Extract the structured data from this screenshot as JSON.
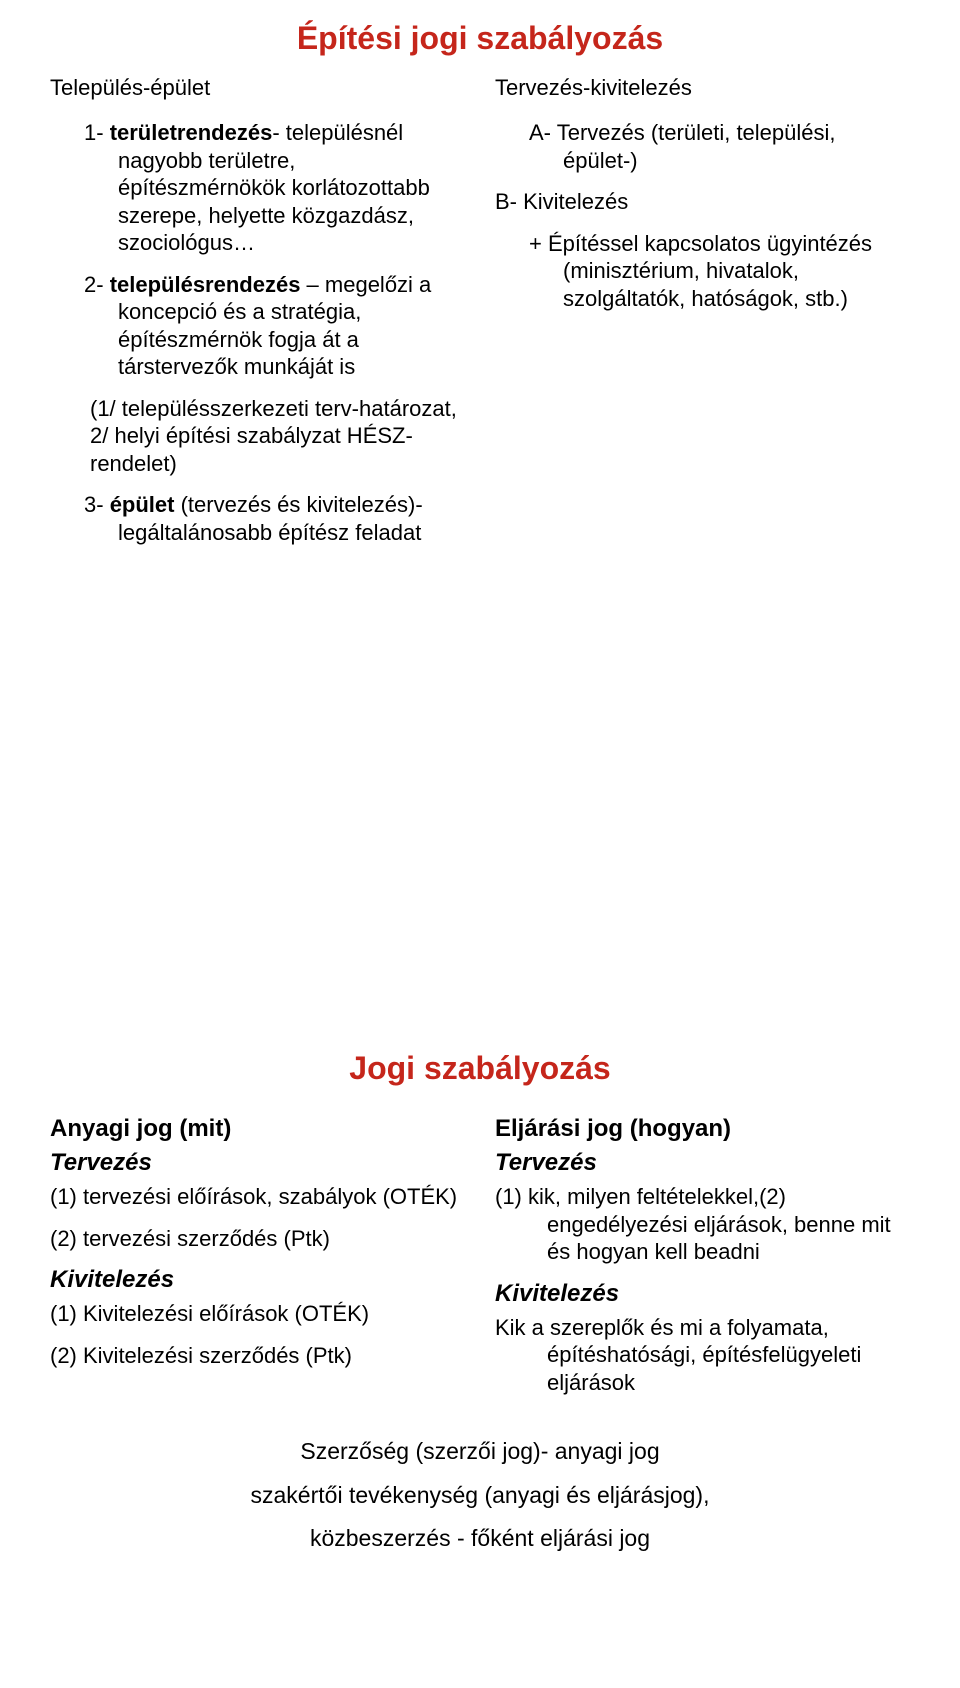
{
  "colors": {
    "heading": "#c5261b",
    "text": "#000000",
    "background": "#ffffff"
  },
  "fonts": {
    "title_size": 32,
    "body_size": 22,
    "subhead_size": 24
  },
  "section1": {
    "title": "Építési jogi szabályozás",
    "left_header": "Település-épület",
    "right_header": "Tervezés-kivitelezés",
    "left": {
      "p1a": "1- ",
      "p1b": "területrendezés",
      "p1c": "- településnél nagyobb területre, építészmérnökök korlátozottabb szerepe, helyette közgazdász, szociológus…",
      "p2a": "2- ",
      "p2b": "településrendezés",
      "p2c": " – megelőzi a koncepció és a stratégia, építészmérnök fogja át a társtervezők munkáját is",
      "p2d": "(1/ településszerkezeti terv-határozat, 2/ helyi építési szabályzat HÉSZ-rendelet)",
      "p3a": "3- ",
      "p3b": "épület",
      "p3c": " (tervezés és kivitelezés)- legáltalánosabb építész feladat"
    },
    "right": {
      "r1": "A- Tervezés (területi,       települési, épület-)",
      "r2": "B- Kivitelezés",
      "r3": "+ Építéssel kapcsolatos      ügyintézés (minisztérium, hivatalok, szolgáltatók, hatóságok, stb.)"
    }
  },
  "section2": {
    "title": "Jogi szabályozás",
    "left": {
      "h1": "Anyagi jog (mit)",
      "h2": "Tervezés",
      "p1": "(1) tervezési előírások, szabályok (OTÉK)",
      "p2": "(2) tervezési szerződés (Ptk)",
      "h3": "Kivitelezés",
      "p3": "(1) Kivitelezési előírások (OTÉK)",
      "p4": "(2) Kivitelezési szerződés (Ptk)"
    },
    "right": {
      "h1": "Eljárási jog (hogyan)",
      "h2": "Tervezés",
      "p1": "(1) kik, milyen feltételekkel,(2) engedélyezési eljárások, benne mit és hogyan kell beadni",
      "h3": "Kivitelezés",
      "p2": "Kik a szereplők és mi a folyamata, építéshatósági, építésfelügyeleti eljárások"
    },
    "footer": {
      "l1": "Szerzőség (szerzői jog)- anyagi jog",
      "l2": "szakértői tevékenység (anyagi és eljárásjog),",
      "l3": "közbeszerzés - főként eljárási jog"
    }
  }
}
